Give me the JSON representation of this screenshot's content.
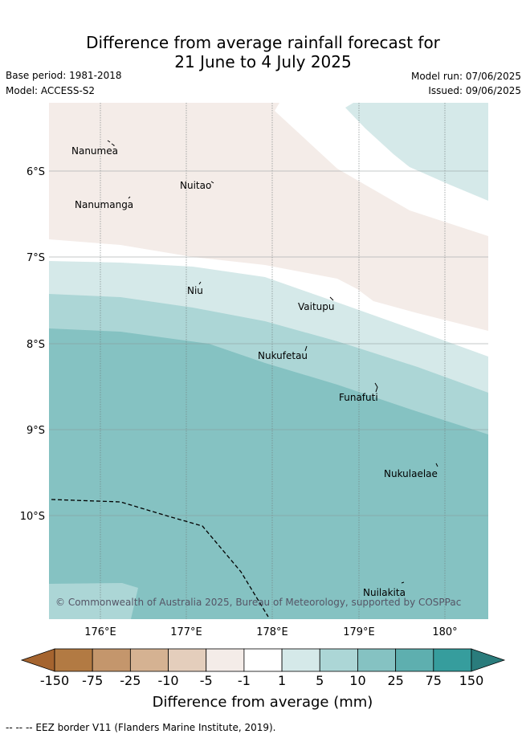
{
  "title_line1": "Difference from average rainfall forecast for",
  "title_line2": "21 June to 4 July 2025",
  "base_period": "Base period: 1981-2018",
  "model": "Model: ACCESS-S2",
  "model_run": "Model run: 07/06/2025",
  "issued": "Issued: 09/06/2025",
  "map": {
    "lat_ticks": [
      "6°S",
      "7°S",
      "8°S",
      "9°S",
      "10°S"
    ],
    "lon_ticks": [
      "176°E",
      "177°E",
      "178°E",
      "179°E",
      "180°"
    ],
    "places": [
      "Nanumea",
      "Nuitao",
      "Nanumanga",
      "Niu",
      "Vaitupu",
      "Nukufetau",
      "Funafuti",
      "Nukulaelae",
      "Nuilakita"
    ],
    "copyright": "© Commonwealth of Australia 2025, Bureau of Meteorology, supported by COSPPac"
  },
  "colorbar": {
    "labels": [
      "-150",
      "-75",
      "-25",
      "-10",
      "-5",
      "-1",
      "1",
      "5",
      "10",
      "25",
      "75",
      "150"
    ],
    "colors": [
      "#a5642f",
      "#b27a43",
      "#c4966c",
      "#d5b292",
      "#e4cebc",
      "#f4ece8",
      "#ffffff",
      "#d5e9e9",
      "#acd6d6",
      "#85c2c2",
      "#5eafaf",
      "#369d9d",
      "#2a7c7c"
    ],
    "title": "Difference from average (mm)"
  },
  "legend_footer": "-- -- -- EEZ border V11 (Flanders Marine Institute, 2019)."
}
